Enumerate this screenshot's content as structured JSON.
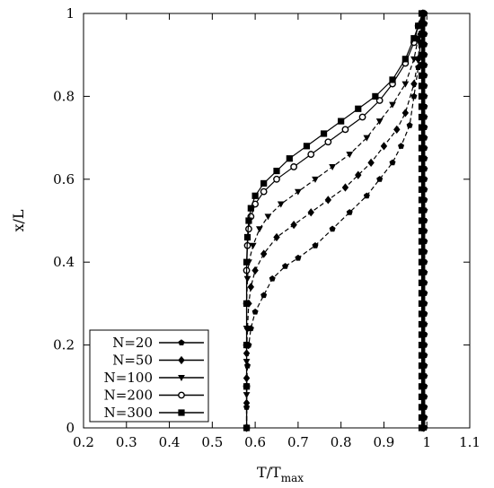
{
  "chart_data": {
    "type": "line",
    "xlabel": "T/T",
    "xlabel_sub": "max",
    "ylabel": "x/L",
    "xlim": [
      0.2,
      1.1
    ],
    "ylim": [
      0,
      1
    ],
    "xticks": [
      "0.2",
      "0.3",
      "0.4",
      "0.5",
      "0.6",
      "0.7",
      "0.8",
      "0.9",
      "1",
      "1.1"
    ],
    "yticks": [
      "0",
      "0.2",
      "0.4",
      "0.6",
      "0.8",
      "1"
    ],
    "legend_position": "bottom-left",
    "series": [
      {
        "name": "N=20",
        "marker": "pentagon",
        "points": [
          [
            0.58,
            0.0
          ],
          [
            0.58,
            0.05
          ],
          [
            0.58,
            0.1
          ],
          [
            0.582,
            0.15
          ],
          [
            0.585,
            0.2
          ],
          [
            0.59,
            0.24
          ],
          [
            0.6,
            0.28
          ],
          [
            0.62,
            0.32
          ],
          [
            0.64,
            0.36
          ],
          [
            0.67,
            0.39
          ],
          [
            0.7,
            0.41
          ],
          [
            0.74,
            0.44
          ],
          [
            0.78,
            0.48
          ],
          [
            0.82,
            0.52
          ],
          [
            0.86,
            0.56
          ],
          [
            0.89,
            0.6
          ],
          [
            0.92,
            0.64
          ],
          [
            0.94,
            0.68
          ],
          [
            0.96,
            0.73
          ],
          [
            0.97,
            0.8
          ],
          [
            0.98,
            0.87
          ],
          [
            0.985,
            0.93
          ],
          [
            0.99,
            1.0
          ]
        ],
        "wall": [
          [
            0.995,
            0.0
          ],
          [
            0.995,
            1.0
          ]
        ]
      },
      {
        "name": "N=50",
        "marker": "diamond",
        "points": [
          [
            0.58,
            0.0
          ],
          [
            0.58,
            0.06
          ],
          [
            0.58,
            0.12
          ],
          [
            0.58,
            0.18
          ],
          [
            0.582,
            0.24
          ],
          [
            0.585,
            0.3
          ],
          [
            0.59,
            0.34
          ],
          [
            0.6,
            0.38
          ],
          [
            0.62,
            0.42
          ],
          [
            0.65,
            0.46
          ],
          [
            0.69,
            0.49
          ],
          [
            0.73,
            0.52
          ],
          [
            0.77,
            0.55
          ],
          [
            0.81,
            0.58
          ],
          [
            0.84,
            0.61
          ],
          [
            0.87,
            0.64
          ],
          [
            0.9,
            0.68
          ],
          [
            0.93,
            0.72
          ],
          [
            0.95,
            0.76
          ],
          [
            0.97,
            0.83
          ],
          [
            0.98,
            0.89
          ],
          [
            0.985,
            0.95
          ],
          [
            0.99,
            1.0
          ]
        ],
        "wall": [
          [
            0.993,
            0.0
          ],
          [
            0.993,
            1.0
          ]
        ]
      },
      {
        "name": "N=100",
        "marker": "triangle-down",
        "points": [
          [
            0.58,
            0.0
          ],
          [
            0.58,
            0.08
          ],
          [
            0.58,
            0.16
          ],
          [
            0.58,
            0.24
          ],
          [
            0.58,
            0.3
          ],
          [
            0.582,
            0.36
          ],
          [
            0.585,
            0.4
          ],
          [
            0.595,
            0.44
          ],
          [
            0.61,
            0.48
          ],
          [
            0.63,
            0.51
          ],
          [
            0.66,
            0.54
          ],
          [
            0.7,
            0.57
          ],
          [
            0.74,
            0.6
          ],
          [
            0.78,
            0.63
          ],
          [
            0.82,
            0.66
          ],
          [
            0.86,
            0.7
          ],
          [
            0.89,
            0.74
          ],
          [
            0.92,
            0.78
          ],
          [
            0.95,
            0.83
          ],
          [
            0.97,
            0.89
          ],
          [
            0.98,
            0.94
          ],
          [
            0.99,
            1.0
          ]
        ],
        "wall": [
          [
            0.992,
            0.0
          ],
          [
            0.992,
            1.0
          ]
        ]
      },
      {
        "name": "N=200",
        "marker": "circle",
        "points": [
          [
            0.58,
            0.0
          ],
          [
            0.58,
            0.1
          ],
          [
            0.58,
            0.2
          ],
          [
            0.58,
            0.3
          ],
          [
            0.58,
            0.38
          ],
          [
            0.582,
            0.44
          ],
          [
            0.585,
            0.48
          ],
          [
            0.59,
            0.51
          ],
          [
            0.6,
            0.54
          ],
          [
            0.62,
            0.57
          ],
          [
            0.65,
            0.6
          ],
          [
            0.69,
            0.63
          ],
          [
            0.73,
            0.66
          ],
          [
            0.77,
            0.69
          ],
          [
            0.81,
            0.72
          ],
          [
            0.85,
            0.75
          ],
          [
            0.89,
            0.79
          ],
          [
            0.92,
            0.83
          ],
          [
            0.95,
            0.88
          ],
          [
            0.97,
            0.93
          ],
          [
            0.98,
            0.97
          ],
          [
            0.99,
            1.0
          ]
        ],
        "wall": [
          [
            0.99,
            0.0
          ],
          [
            0.99,
            1.0
          ]
        ]
      },
      {
        "name": "N=300",
        "marker": "square",
        "points": [
          [
            0.58,
            0.0
          ],
          [
            0.58,
            0.1
          ],
          [
            0.58,
            0.2
          ],
          [
            0.58,
            0.3
          ],
          [
            0.58,
            0.4
          ],
          [
            0.582,
            0.46
          ],
          [
            0.585,
            0.5
          ],
          [
            0.59,
            0.53
          ],
          [
            0.6,
            0.56
          ],
          [
            0.62,
            0.59
          ],
          [
            0.65,
            0.62
          ],
          [
            0.68,
            0.65
          ],
          [
            0.72,
            0.68
          ],
          [
            0.76,
            0.71
          ],
          [
            0.8,
            0.74
          ],
          [
            0.84,
            0.77
          ],
          [
            0.88,
            0.8
          ],
          [
            0.92,
            0.84
          ],
          [
            0.95,
            0.89
          ],
          [
            0.97,
            0.94
          ],
          [
            0.98,
            0.97
          ],
          [
            0.99,
            1.0
          ]
        ],
        "wall": [
          [
            0.988,
            0.0
          ],
          [
            0.988,
            1.0
          ]
        ]
      }
    ]
  }
}
